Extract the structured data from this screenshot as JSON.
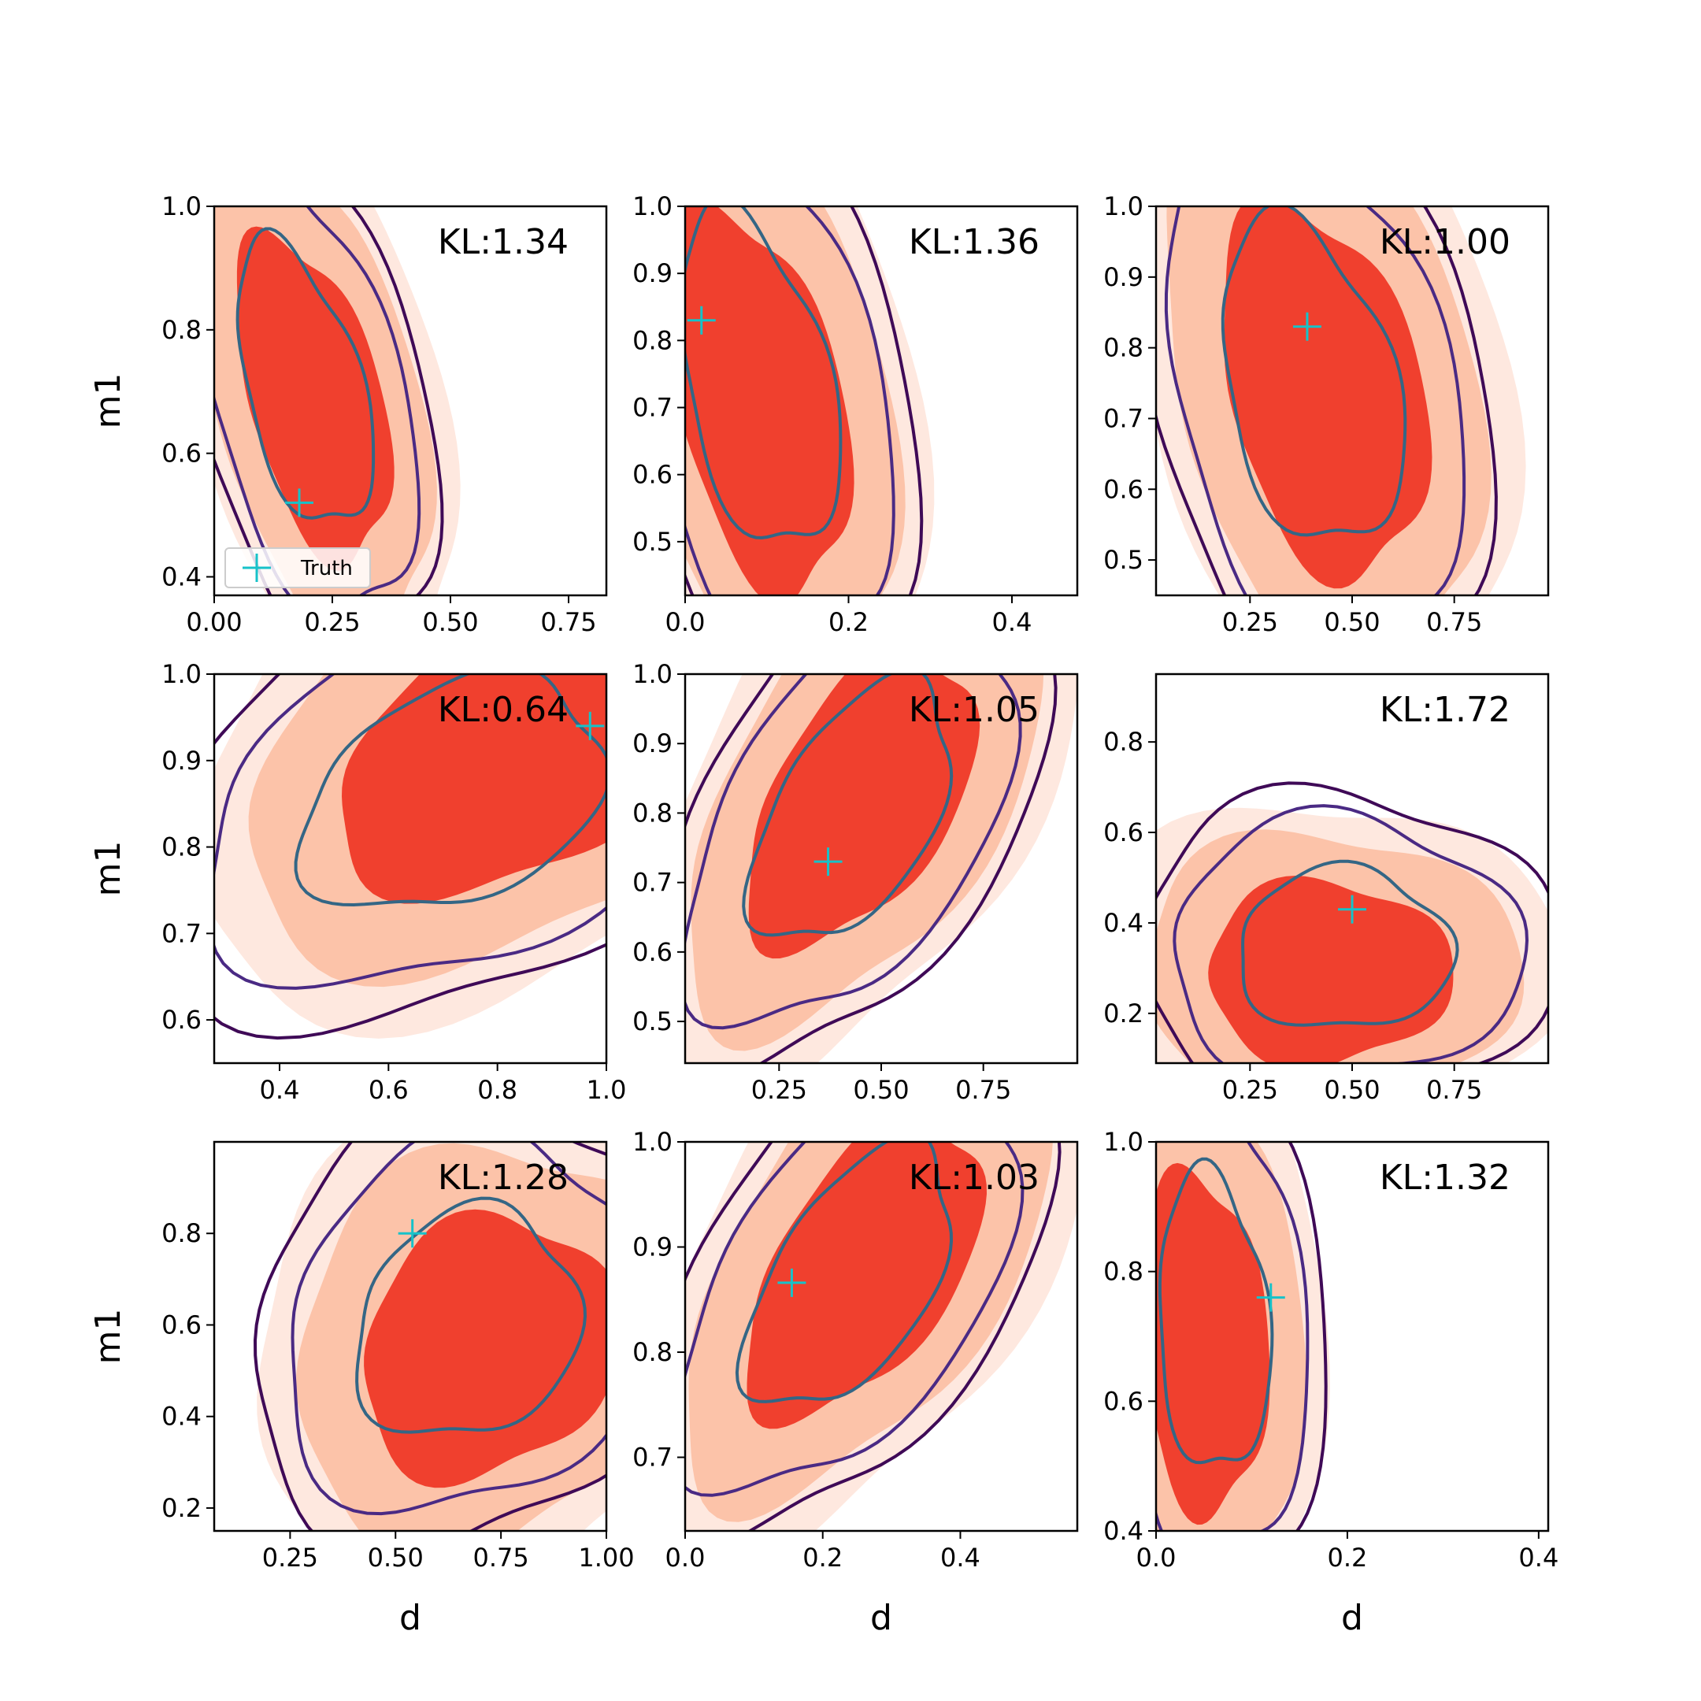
{
  "figure": {
    "xlabel": "d",
    "ylabel": "m1"
  },
  "colors": {
    "fill_levels": [
      "#fee8df",
      "#fcc3a9",
      "#f0402e"
    ],
    "contour_outer": "#3f0a57",
    "contour_mid": "#4a2a84",
    "contour_inner": "#346685",
    "truth_marker": "#17c2c9"
  },
  "legend": {
    "label": "Truth",
    "panel": 0,
    "placement": "lower-left"
  },
  "chart_data": [
    {
      "type": "contour",
      "kl_label": "KL:1.34",
      "xlim": [
        0,
        0.83
      ],
      "ylim": [
        0.37,
        1.0
      ],
      "xticks": [
        0,
        0.25,
        0.5,
        0.75
      ],
      "xticklabels": [
        "0.00",
        "0.25",
        "0.50",
        "0.75"
      ],
      "yticks": [
        0.4,
        0.6,
        0.8,
        1.0
      ],
      "yticklabels": [
        "0.4",
        "0.6",
        "0.8",
        "1.0"
      ],
      "truth": [
        0.18,
        0.52
      ],
      "center": [
        0.19,
        0.71
      ],
      "spread": [
        0.12,
        0.22
      ],
      "tilt": -0.55,
      "blob_shift": [
        0.02,
        -0.02
      ]
    },
    {
      "type": "contour",
      "kl_label": "KL:1.36",
      "xlim": [
        0,
        0.48
      ],
      "ylim": [
        0.42,
        1.0
      ],
      "xticks": [
        0,
        0.2,
        0.4
      ],
      "xticklabels": [
        "0.0",
        "0.2",
        "0.4"
      ],
      "yticks": [
        0.5,
        0.6,
        0.7,
        0.8,
        0.9,
        1.0
      ],
      "yticklabels": [
        "0.5",
        "0.6",
        "0.7",
        "0.8",
        "0.9",
        "1.0"
      ],
      "truth": [
        0.02,
        0.83
      ],
      "center": [
        0.09,
        0.74
      ],
      "spread": [
        0.085,
        0.24
      ],
      "tilt": -0.45,
      "blob_shift": [
        0.0,
        -0.03
      ]
    },
    {
      "type": "contour",
      "kl_label": "KL:1.00",
      "xlim": [
        0.02,
        0.98
      ],
      "ylim": [
        0.45,
        1.0
      ],
      "xticks": [
        0.25,
        0.5,
        0.75
      ],
      "xticklabels": [
        "0.25",
        "0.50",
        "0.75"
      ],
      "yticks": [
        0.5,
        0.6,
        0.7,
        0.8,
        0.9,
        1.0
      ],
      "yticklabels": [
        "0.5",
        "0.6",
        "0.7",
        "0.8",
        "0.9",
        "1.0"
      ],
      "truth": [
        0.39,
        0.83
      ],
      "center": [
        0.4,
        0.75
      ],
      "spread": [
        0.2,
        0.22
      ],
      "tilt": -0.35,
      "blob_shift": [
        0.03,
        -0.01
      ]
    },
    {
      "type": "contour",
      "kl_label": "KL:0.64",
      "xlim": [
        0.28,
        1.0
      ],
      "ylim": [
        0.55,
        1.0
      ],
      "xticks": [
        0.4,
        0.6,
        0.8,
        1.0
      ],
      "xticklabels": [
        "0.4",
        "0.6",
        "0.8",
        "1.0"
      ],
      "yticks": [
        0.6,
        0.7,
        0.8,
        0.9,
        1.0
      ],
      "yticklabels": [
        "0.6",
        "0.7",
        "0.8",
        "0.9",
        "1.0"
      ],
      "truth": [
        0.97,
        0.94
      ],
      "center": [
        0.72,
        0.86
      ],
      "spread": [
        0.25,
        0.13
      ],
      "tilt": 0.35,
      "blob_shift": [
        0.1,
        0.04
      ]
    },
    {
      "type": "contour",
      "kl_label": "KL:1.05",
      "xlim": [
        0.02,
        0.98
      ],
      "ylim": [
        0.44,
        1.0
      ],
      "xticks": [
        0.25,
        0.5,
        0.75
      ],
      "xticklabels": [
        "0.25",
        "0.50",
        "0.75"
      ],
      "yticks": [
        0.5,
        0.6,
        0.7,
        0.8,
        0.9,
        1.0
      ],
      "yticklabels": [
        "0.5",
        "0.6",
        "0.7",
        "0.8",
        "0.9",
        "1.0"
      ],
      "truth": [
        0.37,
        0.73
      ],
      "center": [
        0.43,
        0.8
      ],
      "spread": [
        0.2,
        0.18
      ],
      "tilt": 0.6,
      "blob_shift": [
        0.02,
        0.02
      ]
    },
    {
      "type": "contour",
      "kl_label": "KL:1.72",
      "xlim": [
        0.02,
        0.98
      ],
      "ylim": [
        0.09,
        0.95
      ],
      "xticks": [
        0.25,
        0.5,
        0.75
      ],
      "xticklabels": [
        "0.25",
        "0.50",
        "0.75"
      ],
      "yticks": [
        0.2,
        0.4,
        0.6,
        0.8
      ],
      "yticklabels": [
        "0.2",
        "0.4",
        "0.6",
        "0.8"
      ],
      "truth": [
        0.5,
        0.43
      ],
      "center": [
        0.48,
        0.34
      ],
      "spread": [
        0.25,
        0.17
      ],
      "tilt": 0.0,
      "blob_shift": [
        -0.04,
        -0.05
      ]
    },
    {
      "type": "contour",
      "kl_label": "KL:1.28",
      "xlim": [
        0.07,
        1.0
      ],
      "ylim": [
        0.15,
        1.0
      ],
      "xticks": [
        0.25,
        0.5,
        0.75,
        1.0
      ],
      "xticklabels": [
        "0.25",
        "0.50",
        "0.75",
        "1.00"
      ],
      "yticks": [
        0.2,
        0.4,
        0.6,
        0.8
      ],
      "yticklabels": [
        "0.2",
        "0.4",
        "0.6",
        "0.8"
      ],
      "truth": [
        0.54,
        0.8
      ],
      "center": [
        0.67,
        0.6
      ],
      "spread": [
        0.25,
        0.24
      ],
      "tilt": 0.15,
      "blob_shift": [
        0.05,
        -0.05
      ]
    },
    {
      "type": "contour",
      "kl_label": "KL:1.03",
      "xlim": [
        0,
        0.57
      ],
      "ylim": [
        0.63,
        1.0
      ],
      "xticks": [
        0,
        0.2,
        0.4
      ],
      "xticklabels": [
        "0.0",
        "0.2",
        "0.4"
      ],
      "yticks": [
        0.7,
        0.8,
        0.9,
        1.0
      ],
      "yticklabels": [
        "0.7",
        "0.8",
        "0.9",
        "1.0"
      ],
      "truth": [
        0.155,
        0.866
      ],
      "center": [
        0.24,
        0.87
      ],
      "spread": [
        0.12,
        0.12
      ],
      "tilt": 0.65,
      "blob_shift": [
        0.02,
        0.01
      ]
    },
    {
      "type": "contour",
      "kl_label": "KL:1.32",
      "xlim": [
        0,
        0.41
      ],
      "ylim": [
        0.4,
        1.0
      ],
      "xticks": [
        0,
        0.2,
        0.4
      ],
      "xticklabels": [
        "0.0",
        "0.2",
        "0.4"
      ],
      "yticks": [
        0.4,
        0.6,
        0.8,
        1.0
      ],
      "yticklabels": [
        "0.4",
        "0.6",
        "0.8",
        "1.0"
      ],
      "truth": [
        0.12,
        0.76
      ],
      "center": [
        0.06,
        0.72
      ],
      "spread": [
        0.055,
        0.22
      ],
      "tilt": -0.15,
      "blob_shift": [
        -0.01,
        -0.03
      ]
    }
  ]
}
